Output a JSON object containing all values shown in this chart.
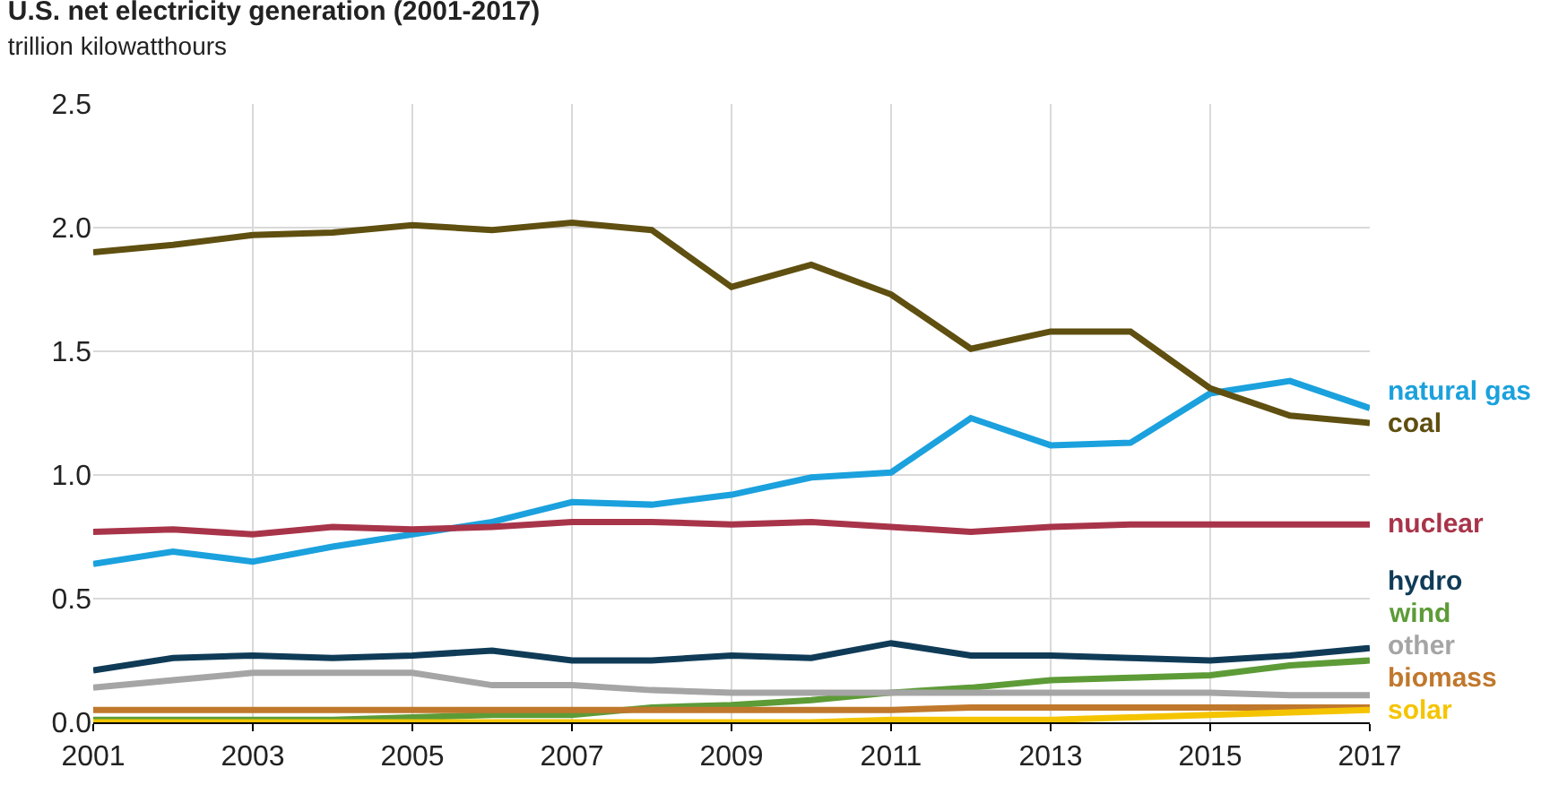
{
  "chart_data": {
    "type": "line",
    "title": "U.S. net electricity generation (2001-2017)",
    "subtitle": "trillion kilowatthours",
    "x": [
      2001,
      2002,
      2003,
      2004,
      2005,
      2006,
      2007,
      2008,
      2009,
      2010,
      2011,
      2012,
      2013,
      2014,
      2015,
      2016,
      2017
    ],
    "series": [
      {
        "name": "natural gas",
        "color": "#1ba1dd",
        "values": [
          0.64,
          0.69,
          0.65,
          0.71,
          0.76,
          0.81,
          0.89,
          0.88,
          0.92,
          0.99,
          1.01,
          1.23,
          1.12,
          1.13,
          1.33,
          1.38,
          1.27
        ]
      },
      {
        "name": "coal",
        "color": "#5f4f10",
        "values": [
          1.9,
          1.93,
          1.97,
          1.98,
          2.01,
          1.99,
          2.02,
          1.99,
          1.76,
          1.85,
          1.73,
          1.51,
          1.58,
          1.58,
          1.35,
          1.24,
          1.21
        ]
      },
      {
        "name": "nuclear",
        "color": "#a8344a",
        "values": [
          0.77,
          0.78,
          0.76,
          0.79,
          0.78,
          0.79,
          0.81,
          0.81,
          0.8,
          0.81,
          0.79,
          0.77,
          0.79,
          0.8,
          0.8,
          0.8,
          0.8
        ]
      },
      {
        "name": "hydro",
        "color": "#0f3b57",
        "values": [
          0.21,
          0.26,
          0.27,
          0.26,
          0.27,
          0.29,
          0.25,
          0.25,
          0.27,
          0.26,
          0.32,
          0.27,
          0.27,
          0.26,
          0.25,
          0.27,
          0.3
        ]
      },
      {
        "name": "wind",
        "color": "#5d9b37",
        "values": [
          0.01,
          0.01,
          0.01,
          0.01,
          0.02,
          0.03,
          0.03,
          0.06,
          0.07,
          0.09,
          0.12,
          0.14,
          0.17,
          0.18,
          0.19,
          0.23,
          0.25
        ]
      },
      {
        "name": "other",
        "color": "#a5a5a5",
        "values": [
          0.14,
          0.17,
          0.2,
          0.2,
          0.2,
          0.15,
          0.15,
          0.13,
          0.12,
          0.12,
          0.12,
          0.12,
          0.12,
          0.12,
          0.12,
          0.11,
          0.11
        ]
      },
      {
        "name": "biomass",
        "color": "#c0782c",
        "values": [
          0.05,
          0.05,
          0.05,
          0.05,
          0.05,
          0.05,
          0.05,
          0.05,
          0.05,
          0.05,
          0.05,
          0.06,
          0.06,
          0.06,
          0.06,
          0.06,
          0.06
        ]
      },
      {
        "name": "solar",
        "color": "#f5c400",
        "values": [
          0.0,
          0.0,
          0.0,
          0.0,
          0.0,
          0.0,
          0.0,
          0.0,
          0.0,
          0.0,
          0.01,
          0.01,
          0.01,
          0.02,
          0.03,
          0.04,
          0.05
        ]
      }
    ],
    "xlim": [
      2001,
      2017
    ],
    "xticks": [
      2001,
      2003,
      2005,
      2007,
      2009,
      2011,
      2013,
      2015,
      2017
    ],
    "ylim": [
      0,
      2.5
    ],
    "yticks": [
      {
        "value": 0,
        "label": "0.0"
      },
      0.5,
      {
        "value": 1,
        "label": "1.0"
      },
      1.5,
      {
        "value": 2,
        "label": "2.0"
      },
      2.5
    ],
    "grid": true,
    "legend": false,
    "marker": "none",
    "line_style": "solid"
  }
}
